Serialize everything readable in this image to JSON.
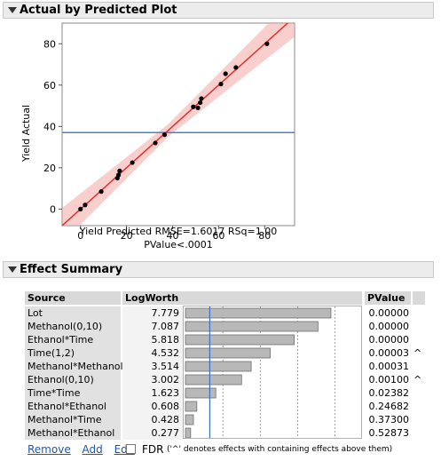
{
  "plot_panel": {
    "title": "Actual by Predicted Plot",
    "ylabel": "Yield Actual",
    "xlabel": "Yield Predicted RMSE=1.6017 RSq=1.00",
    "pvalue_text": "PValue<.0001"
  },
  "chart_data": {
    "type": "scatter",
    "xlabel": "Yield Predicted RMSE=1.6017 RSq=1.00",
    "ylabel": "Yield Actual",
    "xlim": [
      -8,
      93
    ],
    "ylim": [
      -8,
      90
    ],
    "x_ticks": [
      0,
      20,
      40,
      60,
      80
    ],
    "y_ticks": [
      0,
      20,
      40,
      60,
      80
    ],
    "points": [
      {
        "x": 0,
        "y": 0
      },
      {
        "x": 2,
        "y": 2
      },
      {
        "x": 9,
        "y": 8.5
      },
      {
        "x": 16,
        "y": 15
      },
      {
        "x": 16.5,
        "y": 16.5
      },
      {
        "x": 17,
        "y": 18.5
      },
      {
        "x": 22.5,
        "y": 22.5
      },
      {
        "x": 32.5,
        "y": 32
      },
      {
        "x": 36.5,
        "y": 36
      },
      {
        "x": 49,
        "y": 49.5
      },
      {
        "x": 51,
        "y": 49
      },
      {
        "x": 52,
        "y": 51.5
      },
      {
        "x": 52.5,
        "y": 53.5
      },
      {
        "x": 61,
        "y": 60.5
      },
      {
        "x": 63,
        "y": 65.5
      },
      {
        "x": 67.5,
        "y": 68.5
      },
      {
        "x": 81,
        "y": 80
      }
    ],
    "fit_line": {
      "color": "#e0302c"
    },
    "mean_line": {
      "y": 37,
      "color": "#4a7fd6"
    },
    "band_color": "#f2a7a3"
  },
  "effect_panel": {
    "title": "Effect Summary",
    "columns": {
      "source": "Source",
      "logworth": "LogWorth",
      "pvalue": "PValue"
    },
    "rows": [
      {
        "source": "Lot",
        "logworth": "7.779",
        "value": 7.779,
        "pvalue": "0.00000",
        "caret": ""
      },
      {
        "source": "Methanol(0,10)",
        "logworth": "7.087",
        "value": 7.087,
        "pvalue": "0.00000",
        "caret": ""
      },
      {
        "source": "Ethanol*Time",
        "logworth": "5.818",
        "value": 5.818,
        "pvalue": "0.00000",
        "caret": ""
      },
      {
        "source": "Time(1,2)",
        "logworth": "4.532",
        "value": 4.532,
        "pvalue": "0.00003",
        "caret": "^"
      },
      {
        "source": "Methanol*Methanol",
        "logworth": "3.514",
        "value": 3.514,
        "pvalue": "0.00031",
        "caret": ""
      },
      {
        "source": "Ethanol(0,10)",
        "logworth": "3.002",
        "value": 3.002,
        "pvalue": "0.00100",
        "caret": "^"
      },
      {
        "source": "Time*Time",
        "logworth": "1.623",
        "value": 1.623,
        "pvalue": "0.02382",
        "caret": ""
      },
      {
        "source": "Ethanol*Ethanol",
        "logworth": "0.608",
        "value": 0.608,
        "pvalue": "0.24682",
        "caret": ""
      },
      {
        "source": "Methanol*Time",
        "logworth": "0.428",
        "value": 0.428,
        "pvalue": "0.37300",
        "caret": ""
      },
      {
        "source": "Methanol*Ethanol",
        "logworth": "0.277",
        "value": 0.277,
        "pvalue": "0.52873",
        "caret": ""
      }
    ],
    "logworth_max": 9.3,
    "ref_line_value": 1.3,
    "grid_values": [
      2,
      4,
      6,
      8
    ]
  },
  "controls": {
    "remove": "Remove",
    "add": "Add",
    "edit": "Edit",
    "fdr": "FDR",
    "note": "('^' denotes effects with containing effects above them)"
  }
}
